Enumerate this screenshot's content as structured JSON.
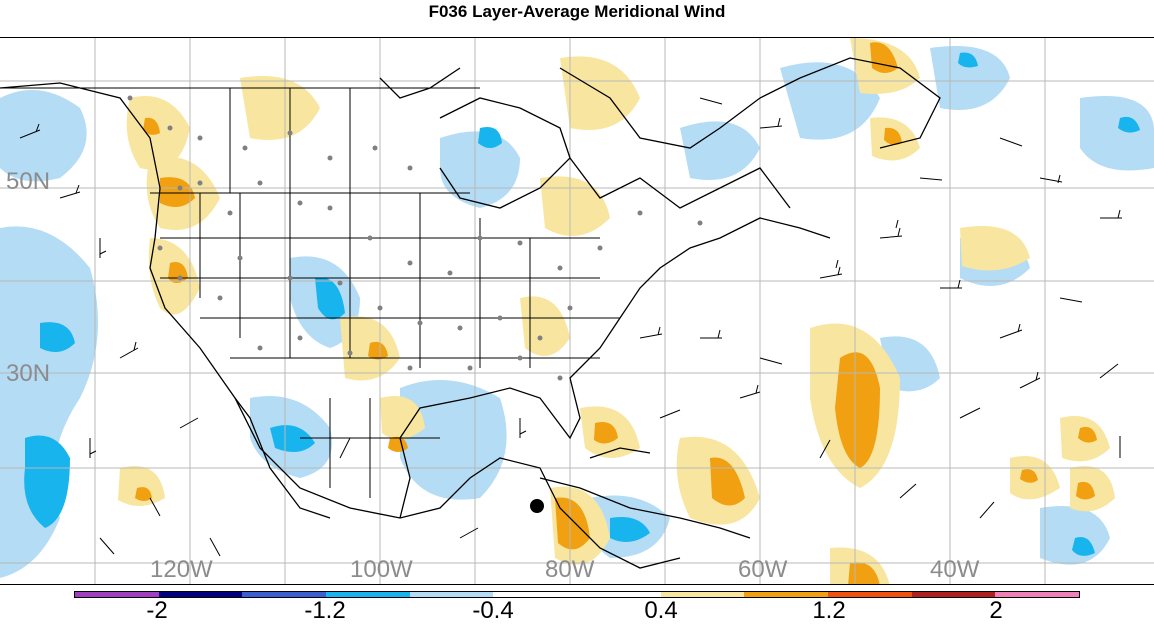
{
  "title": "F036 Layer-Average Meridional Wind",
  "lat_labels": [
    "50N",
    "30N"
  ],
  "lon_labels": [
    "120W",
    "100W",
    "80W",
    "60W",
    "40W"
  ],
  "colorbar": {
    "colors": [
      "#a040c0",
      "#000080",
      "#3a5fd0",
      "#18b4ee",
      "#b4dcf5",
      "#ffffff",
      "#ffffff",
      "#f8e6a0",
      "#f0a010",
      "#f05010",
      "#b02020",
      "#f080b8"
    ],
    "labels": [
      "-2",
      "-1.2",
      "-0.4",
      "0.4",
      "1.2",
      "2"
    ]
  }
}
